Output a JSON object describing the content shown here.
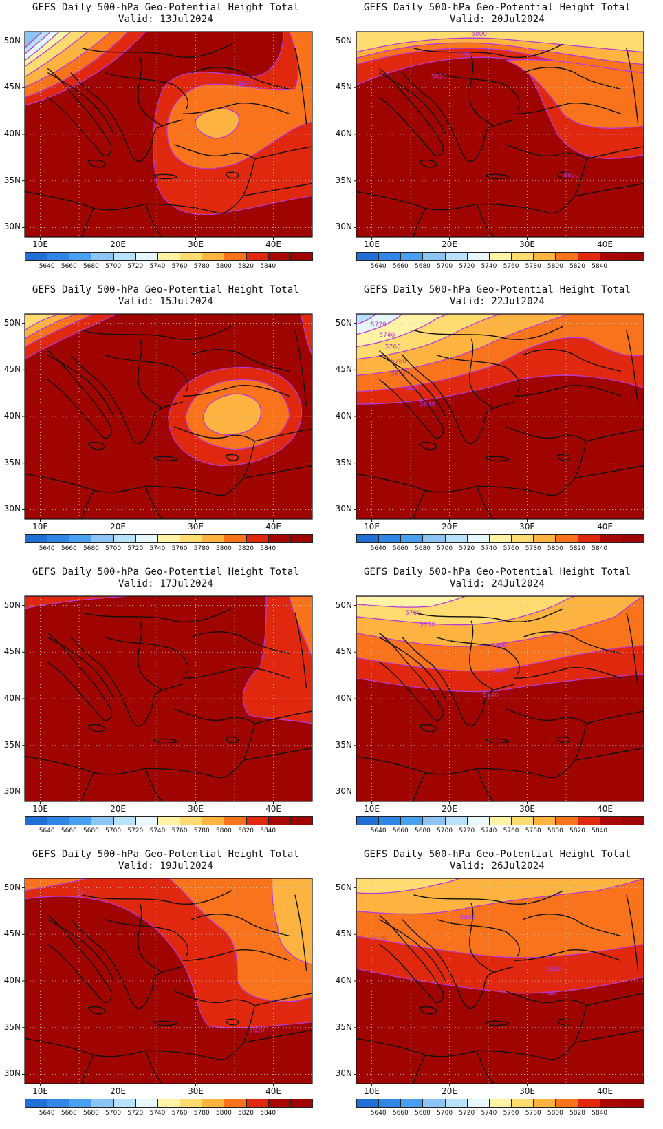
{
  "title_line": "GEFS Daily 500-hPa Geo-Potential Height Total",
  "panels": [
    {
      "id": "p13",
      "valid": "Valid: 13Jul2024",
      "contour_labels": [
        "5820"
      ]
    },
    {
      "id": "p20",
      "valid": "Valid: 20Jul2024",
      "contour_labels": [
        "5800",
        "5820",
        "5820",
        "5820"
      ]
    },
    {
      "id": "p15",
      "valid": "Valid: 15Jul2024",
      "contour_labels": []
    },
    {
      "id": "p22",
      "valid": "Valid: 22Jul2024",
      "contour_labels": [
        "5720",
        "5740",
        "5760",
        "5780",
        "5800",
        "5820",
        "5840"
      ]
    },
    {
      "id": "p17",
      "valid": "Valid: 17Jul2024",
      "contour_labels": []
    },
    {
      "id": "p24",
      "valid": "Valid: 24Jul2024",
      "contour_labels": [
        "5760",
        "5780",
        "5800",
        "5820",
        "5840"
      ]
    },
    {
      "id": "p19",
      "valid": "Valid: 19Jul2024",
      "contour_labels": [
        "5840",
        "5820"
      ]
    },
    {
      "id": "p26",
      "valid": "Valid: 26Jul2024",
      "contour_labels": [
        "5800",
        "5820",
        "5820",
        "5840"
      ]
    }
  ],
  "y_ticks": [
    "50N",
    "45N",
    "40N",
    "35N",
    "30N"
  ],
  "x_ticks": [
    "10E",
    "20E",
    "30E",
    "40E"
  ],
  "colorbar": {
    "labels": [
      "5640",
      "5660",
      "5680",
      "5700",
      "5720",
      "5740",
      "5760",
      "5780",
      "5800",
      "5820",
      "5840"
    ],
    "colors": [
      "#1f6fd6",
      "#2f86e6",
      "#4aa0f0",
      "#8cc4f4",
      "#b8e2fa",
      "#e6f8fc",
      "#fff3a6",
      "#ffdc70",
      "#fdb340",
      "#f8731c",
      "#e0280f",
      "#a80800",
      "#a00400"
    ]
  },
  "colors": {
    "contour": "#b53ad8",
    "coast": "#111111",
    "grid": "#c8c8c8",
    "c5840": "#a00400",
    "c5820": "#e0280f",
    "c5800": "#f8731c",
    "c5780": "#fdb340",
    "c5760": "#ffdc70",
    "c5740": "#fff3a6",
    "c5720": "#e6f8fc",
    "c5700": "#b8e2fa",
    "c5680": "#8cc4f4",
    "c5660": "#4aa0f0"
  }
}
